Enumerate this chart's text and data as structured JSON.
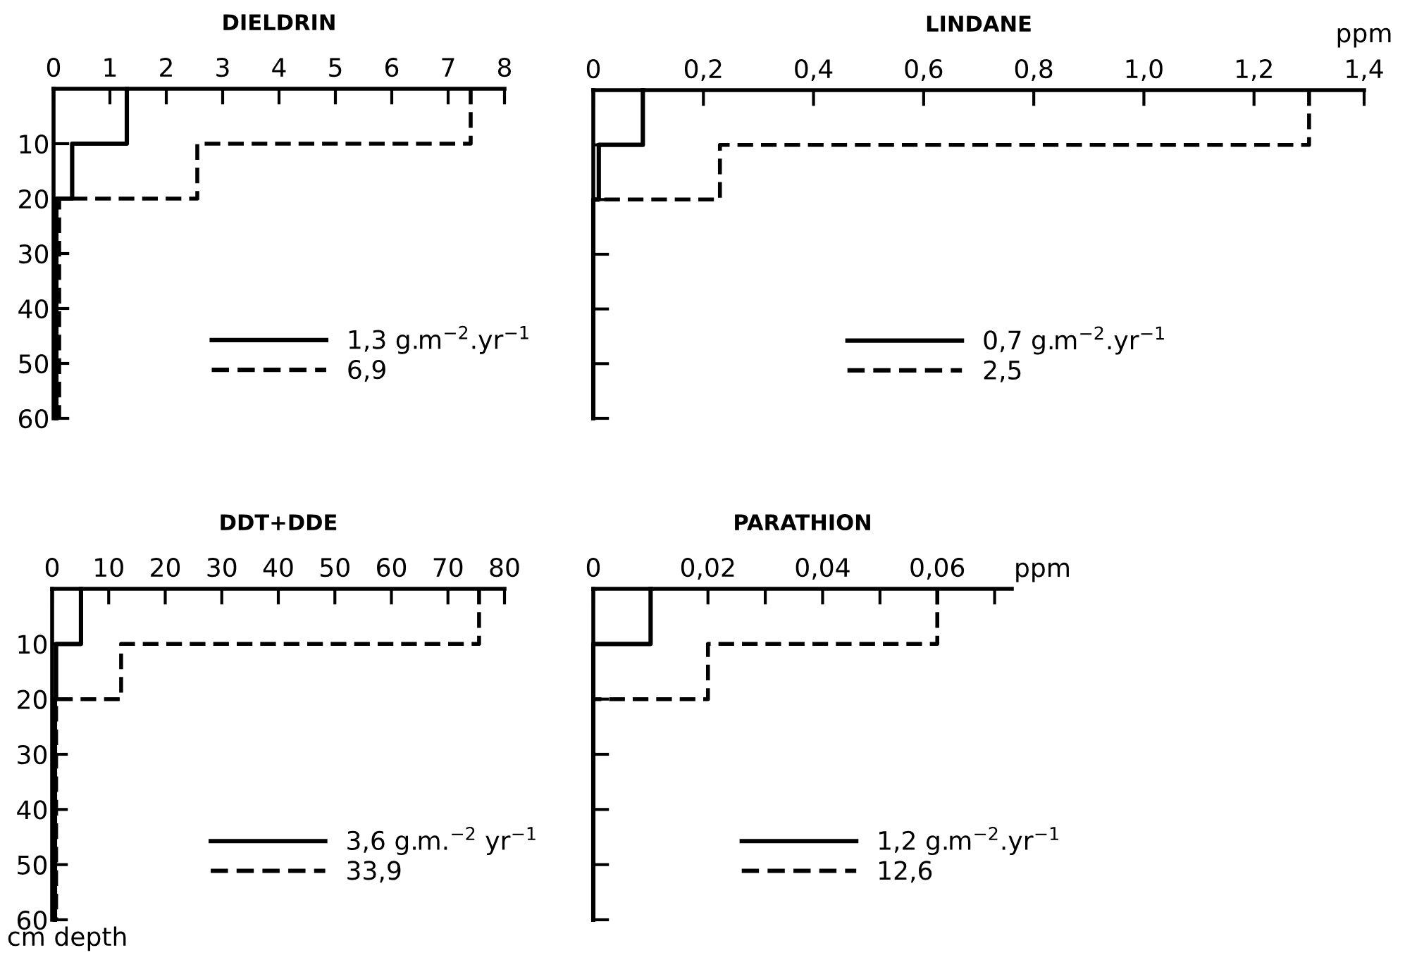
{
  "chart_data": [
    {
      "type": "step",
      "orientation": "horizontal",
      "title": "DIELDRIN",
      "x": [
        0,
        10,
        20,
        60
      ],
      "xlim": [
        0,
        8
      ],
      "xticks": [
        0,
        1,
        2,
        3,
        4,
        5,
        6,
        7,
        8
      ],
      "ylim": [
        60,
        0
      ],
      "yticks": [
        10,
        20,
        30,
        40,
        50,
        60
      ],
      "legend": "center",
      "series": [
        {
          "name": "1,3 g.m$^{−2}$.yr$^{−1}$",
          "color": "#000000",
          "line_style": "solid",
          "values": [
            1.3,
            0.33,
            0.05,
            0.05
          ]
        },
        {
          "name": "6,9",
          "color": "#000000",
          "line_style": "dashed",
          "values": [
            7.4,
            2.55,
            0.1,
            0.1
          ]
        }
      ]
    },
    {
      "type": "step",
      "orientation": "horizontal",
      "title": "LINDANE",
      "xlabel": "ppm",
      "x": [
        0,
        10,
        20,
        60
      ],
      "xlim": [
        0,
        1.4
      ],
      "xticks": [
        0,
        {
          "value": 0.2,
          "label": "0,2"
        },
        {
          "value": 0.4,
          "label": "0,4"
        },
        {
          "value": 0.6,
          "label": "0,6"
        },
        {
          "value": 0.8,
          "label": "0,8"
        },
        {
          "value": 1.0,
          "label": "1,0"
        },
        {
          "value": 1.2,
          "label": "1,2"
        },
        {
          "value": 1.4,
          "label": "1,4"
        }
      ],
      "ylim": [
        60,
        0
      ],
      "yticks": [
        10,
        20,
        30,
        40,
        50,
        60
      ],
      "tick_labels": "x",
      "legend": "center",
      "series": [
        {
          "name": "0,7 g.m$^{−2}$.yr$^{−1}$",
          "color": "#000000",
          "line_style": "solid",
          "values": [
            0.09,
            0.01,
            0,
            0
          ]
        },
        {
          "name": "2,5",
          "color": "#000000",
          "line_style": "dashed",
          "values": [
            1.3,
            0.23,
            0,
            0
          ]
        }
      ]
    },
    {
      "type": "step",
      "orientation": "horizontal",
      "title": "DDT+DDE",
      "ylabel": "cm depth",
      "x": [
        0,
        10,
        20,
        60
      ],
      "xlim": [
        0,
        80
      ],
      "xticks": [
        0,
        10,
        20,
        30,
        40,
        50,
        60,
        70,
        80
      ],
      "ylim": [
        60,
        0
      ],
      "yticks": [
        10,
        20,
        30,
        40,
        50,
        60
      ],
      "legend": "center",
      "series": [
        {
          "name": "3,6 g.m.$^{−2}$ yr$^{−1}$",
          "color": "#000000",
          "line_style": "solid",
          "values": [
            5.1,
            0.7,
            0.5,
            0.5
          ]
        },
        {
          "name": "33,9",
          "color": "#000000",
          "line_style": "dashed",
          "values": [
            75.5,
            12.2,
            0.7,
            0.7
          ]
        }
      ]
    },
    {
      "type": "step",
      "orientation": "horizontal",
      "title": "PARATHION",
      "xlabel": "ppm",
      "x": [
        0,
        10,
        20,
        60
      ],
      "xlim": [
        0,
        0.073
      ],
      "xticks": [
        0,
        {
          "value": 0.01,
          "label": null
        },
        {
          "value": 0.02,
          "label": "0,02"
        },
        {
          "value": 0.03,
          "label": null
        },
        {
          "value": 0.04,
          "label": "0,04"
        },
        {
          "value": 0.05,
          "label": null
        },
        {
          "value": 0.06,
          "label": "0,06"
        },
        {
          "value": 0.07,
          "label": null
        }
      ],
      "ylim": [
        60,
        0
      ],
      "yticks": [
        10,
        20,
        30,
        40,
        50,
        60
      ],
      "tick_labels": "x",
      "legend": "center",
      "series": [
        {
          "name": "1,2 g.m$^{−2}$.yr$^{−1}$",
          "color": "#000000",
          "line_style": "solid",
          "values": [
            0.01,
            0,
            0,
            0
          ]
        },
        {
          "name": "12,6",
          "color": "#000000",
          "line_style": "dashed",
          "values": [
            0.06,
            0.02,
            0,
            0
          ]
        }
      ]
    }
  ]
}
